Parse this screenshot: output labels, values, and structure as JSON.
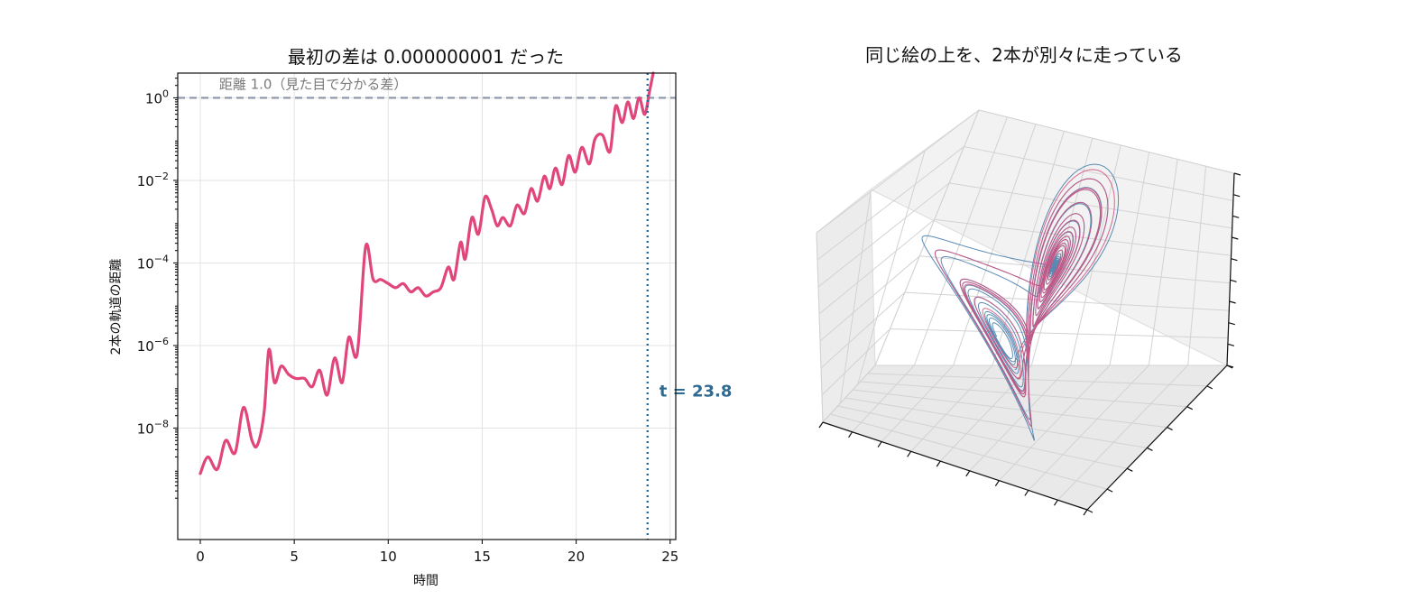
{
  "chart_data": [
    {
      "type": "line",
      "title": "最初の差は 0.000000001 だった",
      "xlabel": "時間",
      "ylabel": "2本の軌道の距離",
      "yscale": "log",
      "xlim": [
        -1.2,
        25.3
      ],
      "ylim_exponent": [
        -10.7,
        0.6
      ],
      "grid": true,
      "x_ticks": [
        0,
        5,
        10,
        15,
        20,
        25
      ],
      "x_tick_labels": [
        "0",
        "5",
        "10",
        "15",
        "20",
        "25"
      ],
      "y_tick_exponents": [
        0,
        -2,
        -4,
        -6,
        -8
      ],
      "y_tick_labels": [
        {
          "base": "10",
          "exp": "0"
        },
        {
          "base": "10",
          "exp": "−2"
        },
        {
          "base": "10",
          "exp": "−4"
        },
        {
          "base": "10",
          "exp": "−6"
        },
        {
          "base": "10",
          "exp": "−8"
        }
      ],
      "series": [
        {
          "color": "#e0457b",
          "x": [
            0,
            0.4,
            0.9,
            1.35,
            1.85,
            2.3,
            2.75,
            3.05,
            3.4,
            3.65,
            3.95,
            4.3,
            4.7,
            5.1,
            5.55,
            5.95,
            6.35,
            6.75,
            7.15,
            7.55,
            7.9,
            8.35,
            8.8,
            9.2,
            9.6,
            10.0,
            10.4,
            10.8,
            11.2,
            11.6,
            12.0,
            12.4,
            12.8,
            13.2,
            13.5,
            13.85,
            14.1,
            14.45,
            14.8,
            15.15,
            15.5,
            15.8,
            16.1,
            16.5,
            16.85,
            17.25,
            17.6,
            17.95,
            18.3,
            18.6,
            18.9,
            19.25,
            19.6,
            19.95,
            20.3,
            20.7,
            21.0,
            21.4,
            21.8,
            22.1,
            22.45,
            22.75,
            23.05,
            23.35,
            23.65,
            23.9,
            24.1
          ],
          "y_log10": [
            -9.1,
            -8.7,
            -9.0,
            -8.3,
            -8.6,
            -7.5,
            -8.3,
            -8.4,
            -7.6,
            -6.1,
            -6.9,
            -6.5,
            -6.7,
            -6.8,
            -6.8,
            -7.0,
            -6.6,
            -7.2,
            -6.3,
            -6.9,
            -5.8,
            -6.2,
            -3.6,
            -4.4,
            -4.4,
            -4.5,
            -4.6,
            -4.5,
            -4.7,
            -4.6,
            -4.8,
            -4.7,
            -4.6,
            -4.1,
            -4.4,
            -3.5,
            -3.9,
            -2.9,
            -3.3,
            -2.4,
            -2.7,
            -3.1,
            -2.9,
            -3.1,
            -2.6,
            -2.8,
            -2.2,
            -2.5,
            -1.9,
            -2.2,
            -1.7,
            -2.1,
            -1.4,
            -1.8,
            -1.2,
            -1.6,
            -1.0,
            -0.9,
            -1.3,
            -0.2,
            -0.6,
            -0.1,
            -0.5,
            0.0,
            -0.4,
            0.15,
            0.6
          ]
        }
      ],
      "hline": {
        "y": 1.0,
        "label": "距離 1.0（見た目で分かる差）",
        "color": "#8a94aa"
      },
      "vline": {
        "x": 23.8,
        "label": "t = 23.8",
        "color": "#2e6a92"
      }
    },
    {
      "type": "3d-line",
      "title": "同じ絵の上を、2本が別々に走っている",
      "series": [
        {
          "color": "#3f78a8"
        },
        {
          "color": "#d24f7e"
        }
      ]
    }
  ]
}
